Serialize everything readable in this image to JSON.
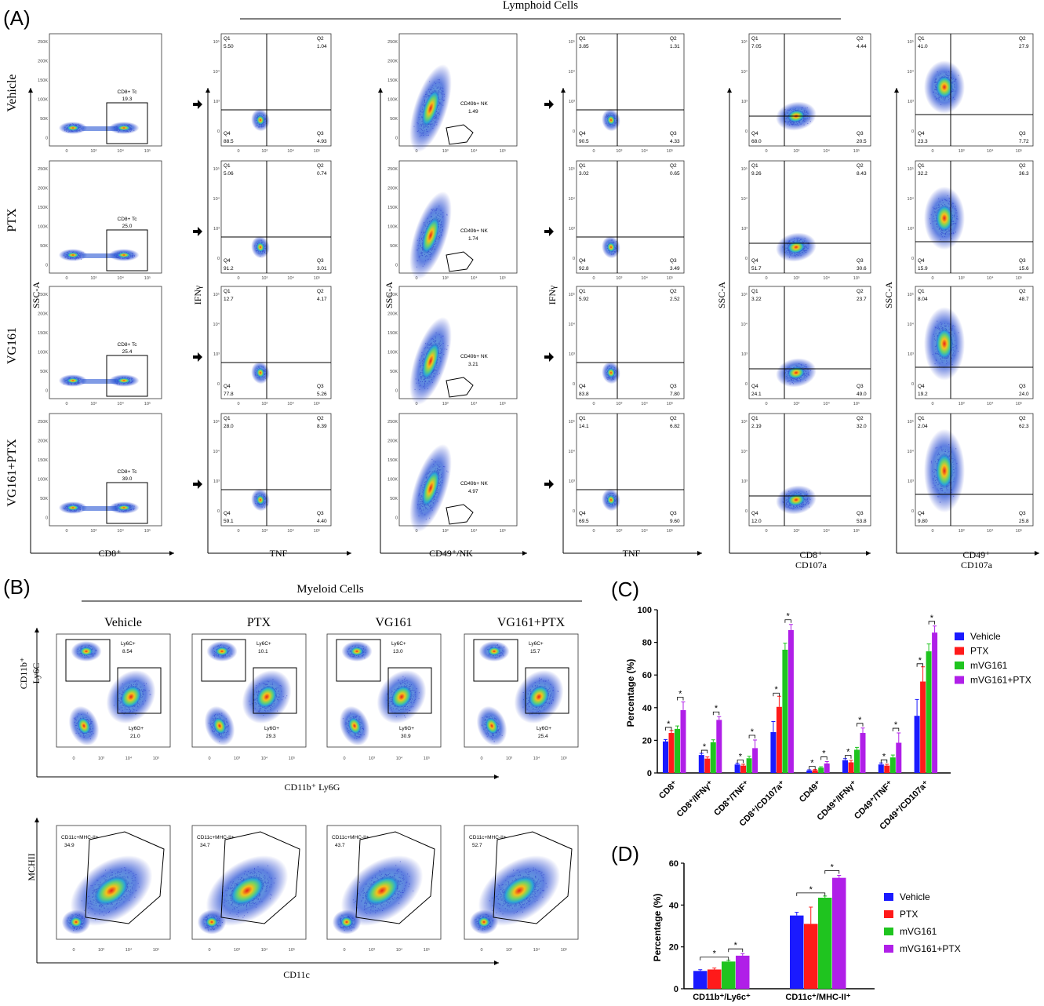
{
  "panel_labels": {
    "a": "(A)",
    "b": "(B)",
    "c": "(C)",
    "d": "(D)"
  },
  "section_titles": {
    "lymphoid": "Lymphoid Cells",
    "myeloid": "Myeloid Cells"
  },
  "groups": [
    "Vehicle",
    "PTX",
    "VG161",
    "VG161+PTX"
  ],
  "panel_a": {
    "axis_labels": {
      "ssc": "SSC-A",
      "ifng": "IFNγ",
      "tnf": "TNF",
      "cd8": "CD8⁺",
      "cd49nk": "CD49⁺/NK",
      "cd8_line1": "CD8⁺",
      "cd49_line1": "CD49⁺",
      "cd107a": "CD107a"
    },
    "gates": {
      "cd8": {
        "label": "CD8+ Tc",
        "values": [
          "19.3",
          "25.0",
          "25.4",
          "39.0"
        ]
      },
      "nk": {
        "label": "CD49b+ NK",
        "values": [
          "1.49",
          "1.74",
          "3.21",
          "4.97"
        ]
      }
    },
    "quadrant_names": [
      "Q1",
      "Q2",
      "Q3",
      "Q4"
    ],
    "quadrants": {
      "cd8_ifng_tnf": [
        [
          "5.50",
          "1.04",
          "4.93",
          "88.5"
        ],
        [
          "5.06",
          "0.74",
          "3.01",
          "91.2"
        ],
        [
          "12.7",
          "4.17",
          "5.26",
          "77.8"
        ],
        [
          "28.0",
          "8.39",
          "4.40",
          "59.1"
        ]
      ],
      "nk_ifng_tnf": [
        [
          "3.85",
          "1.31",
          "4.33",
          "90.5"
        ],
        [
          "3.02",
          "0.65",
          "3.49",
          "92.8"
        ],
        [
          "5.92",
          "2.52",
          "7.80",
          "83.8"
        ],
        [
          "14.1",
          "6.82",
          "9.60",
          "69.5"
        ]
      ],
      "cd8_cd107a": [
        [
          "7.05",
          "4.44",
          "20.5",
          "68.0"
        ],
        [
          "9.26",
          "8.43",
          "30.6",
          "51.7"
        ],
        [
          "3.22",
          "23.7",
          "49.0",
          "24.1"
        ],
        [
          "2.19",
          "32.0",
          "53.8",
          "12.0"
        ]
      ],
      "cd49_cd107a": [
        [
          "41.0",
          "27.9",
          "7.72",
          "23.3"
        ],
        [
          "32.2",
          "36.3",
          "15.6",
          "15.9"
        ],
        [
          "8.04",
          "48.7",
          "24.0",
          "19.2"
        ],
        [
          "2.04",
          "62.3",
          "25.8",
          "9.80"
        ]
      ]
    }
  },
  "panel_b": {
    "axis_labels": {
      "cd11b_ly6c_line1": "CD11b⁺",
      "cd11b_ly6c_line2": "Ly6C",
      "cd11b_ly6g": "CD11b⁺ Ly6G",
      "mchii": "MCHII",
      "cd11c": "CD11c"
    },
    "ly6c_label": "Ly6C+",
    "ly6g_label": "Ly6G+",
    "mhc_label": "CD11c+MHC-II+",
    "ly6c_values": [
      "8.54",
      "10.1",
      "13.0",
      "15.7"
    ],
    "ly6g_values": [
      "21.0",
      "29.3",
      "30.9",
      "25.4"
    ],
    "mhc_values": [
      "34.9",
      "34.7",
      "43.7",
      "52.7"
    ]
  },
  "chart_data": [
    {
      "type": "bar",
      "panel": "(C)",
      "ylabel": "Percentage (%)",
      "ylim": [
        0,
        100
      ],
      "yticks": [
        0,
        20,
        40,
        60,
        80,
        100
      ],
      "categories": [
        "CD8⁺",
        "CD8⁺/IFNγ⁺",
        "CD8⁺/TNF⁺",
        "CD8⁺/CD107a⁺",
        "CD49⁺",
        "CD49⁺/IFNγ⁺",
        "CD49⁺/TNF⁺",
        "CD49⁺/CD107a⁺"
      ],
      "series": [
        {
          "name": "Vehicle",
          "color": "#1a1aff",
          "values": [
            19.3,
            11.0,
            5.2,
            25.0,
            1.5,
            7.8,
            5.2,
            35.0
          ],
          "errors": [
            1.2,
            1.0,
            0.8,
            6.5,
            0.4,
            1.0,
            0.9,
            10.0
          ]
        },
        {
          "name": "PTX",
          "color": "#ff1a1a",
          "values": [
            24.5,
            8.8,
            4.5,
            40.5,
            1.7,
            6.5,
            4.5,
            56.0
          ],
          "errors": [
            1.5,
            1.0,
            0.8,
            6.5,
            0.4,
            1.2,
            0.8,
            9.0
          ]
        },
        {
          "name": "mVG161",
          "color": "#1fc41f",
          "values": [
            27.0,
            18.8,
            9.0,
            75.5,
            3.2,
            14.2,
            9.5,
            74.5
          ],
          "errors": [
            1.8,
            1.5,
            1.2,
            4.0,
            0.6,
            1.5,
            1.5,
            4.5
          ]
        },
        {
          "name": "mVG161+PTX",
          "color": "#b01fe8",
          "values": [
            38.5,
            32.5,
            15.2,
            87.5,
            5.8,
            24.5,
            18.5,
            86.0
          ],
          "errors": [
            5.0,
            2.0,
            5.0,
            3.5,
            1.2,
            3.0,
            6.0,
            4.0
          ]
        }
      ],
      "significance": "*",
      "legend_position": "top-right"
    },
    {
      "type": "bar",
      "panel": "(D)",
      "ylabel": "Percentage (%)",
      "ylim": [
        0,
        60
      ],
      "yticks": [
        0,
        20,
        40,
        60
      ],
      "categories": [
        "CD11b⁺/Ly6c⁺",
        "CD11c⁺/MHC-II⁺"
      ],
      "series": [
        {
          "name": "Vehicle",
          "color": "#1a1aff",
          "values": [
            8.5,
            35.0
          ],
          "errors": [
            0.6,
            1.5
          ]
        },
        {
          "name": "PTX",
          "color": "#ff1a1a",
          "values": [
            9.2,
            31.0
          ],
          "errors": [
            0.7,
            8.0
          ]
        },
        {
          "name": "mVG161",
          "color": "#1fc41f",
          "values": [
            13.0,
            43.5
          ],
          "errors": [
            0.6,
            0.8
          ]
        },
        {
          "name": "mVG161+PTX",
          "color": "#b01fe8",
          "values": [
            15.8,
            53.0
          ],
          "errors": [
            1.0,
            1.2
          ]
        }
      ],
      "significance": "*",
      "legend_position": "right"
    }
  ]
}
